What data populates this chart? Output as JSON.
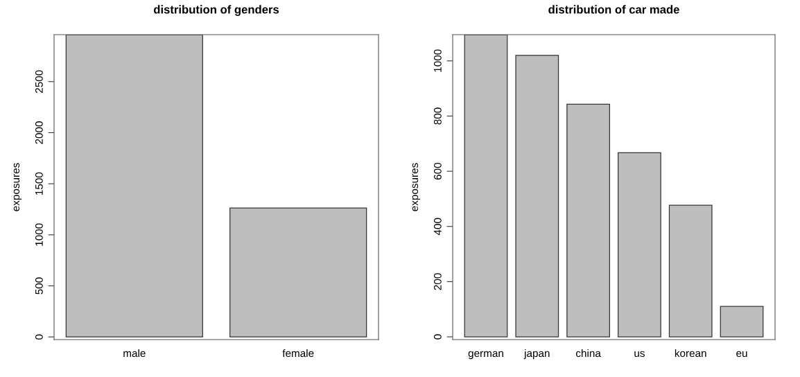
{
  "chart_data": [
    {
      "type": "bar",
      "title": "distribution of genders",
      "ylabel": "exposures",
      "categories": [
        "male",
        "female"
      ],
      "values": [
        2960,
        1262
      ],
      "color": "#bebebe",
      "ylim": [
        -26,
        2960
      ],
      "yticks": [
        0,
        500,
        1000,
        1500,
        2000,
        2500
      ],
      "grid": false
    },
    {
      "type": "bar",
      "title": "distribution of car made",
      "ylabel": "exposures",
      "categories": [
        "german",
        "japan",
        "china",
        "us",
        "korean",
        "eu"
      ],
      "values": [
        1095,
        1020,
        843,
        667,
        477,
        110
      ],
      "color": "#bebebe",
      "ylim": [
        -10,
        1095
      ],
      "yticks": [
        0,
        200,
        400,
        600,
        800,
        1000
      ],
      "grid": false
    }
  ]
}
